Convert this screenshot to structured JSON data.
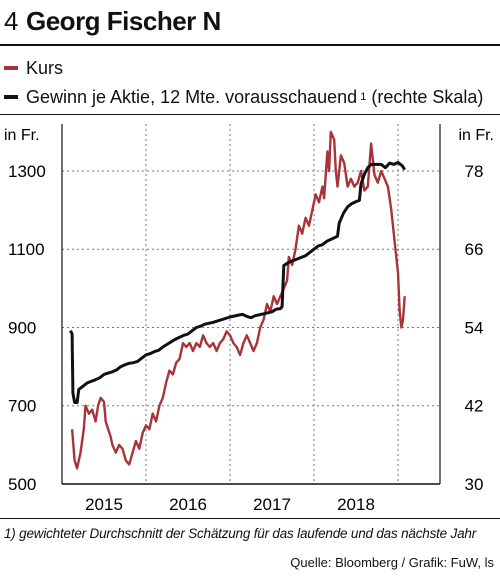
{
  "header": {
    "number": "4",
    "title": "Georg Fischer N"
  },
  "legend": [
    {
      "label": "Kurs",
      "color": "#a8343a"
    },
    {
      "label": "Gewinn je Aktie, 12 Mte. vorausschauend",
      "sup": "1",
      "suffix": "(rechte Skala)",
      "color": "#111111"
    }
  ],
  "footnote": "1) gewichteter Durchschnitt der Schätzung für das laufende und das nächste Jahr",
  "source": "Quelle: Bloomberg / Grafik: FuW, ls",
  "chart_data": {
    "type": "line",
    "left_unit": "in Fr.",
    "right_unit": "in Fr.",
    "x_ticks": [
      "2015",
      "2016",
      "2017",
      "2018"
    ],
    "xlim": [
      2014.5,
      2019.0
    ],
    "left_axis": {
      "ylim": [
        500,
        1420
      ],
      "ticks": [
        500,
        700,
        900,
        1100,
        1300
      ]
    },
    "right_axis": {
      "ylim": [
        30,
        85.2
      ],
      "ticks": [
        30,
        42,
        54,
        66,
        78
      ]
    },
    "series": [
      {
        "name": "Kurs",
        "axis": "left",
        "color": "#a8343a",
        "points": [
          [
            2014.62,
            640
          ],
          [
            2014.65,
            560
          ],
          [
            2014.68,
            540
          ],
          [
            2014.72,
            580
          ],
          [
            2014.76,
            640
          ],
          [
            2014.78,
            700
          ],
          [
            2014.82,
            680
          ],
          [
            2014.86,
            690
          ],
          [
            2014.9,
            660
          ],
          [
            2014.93,
            700
          ],
          [
            2014.96,
            720
          ],
          [
            2015.0,
            710
          ],
          [
            2015.02,
            660
          ],
          [
            2015.05,
            640
          ],
          [
            2015.08,
            620
          ],
          [
            2015.1,
            600
          ],
          [
            2015.14,
            580
          ],
          [
            2015.18,
            600
          ],
          [
            2015.22,
            590
          ],
          [
            2015.26,
            560
          ],
          [
            2015.3,
            550
          ],
          [
            2015.34,
            580
          ],
          [
            2015.38,
            610
          ],
          [
            2015.42,
            590
          ],
          [
            2015.46,
            630
          ],
          [
            2015.5,
            650
          ],
          [
            2015.54,
            640
          ],
          [
            2015.58,
            680
          ],
          [
            2015.62,
            660
          ],
          [
            2015.66,
            700
          ],
          [
            2015.7,
            720
          ],
          [
            2015.74,
            760
          ],
          [
            2015.78,
            790
          ],
          [
            2015.82,
            780
          ],
          [
            2015.86,
            810
          ],
          [
            2015.9,
            820
          ],
          [
            2015.94,
            860
          ],
          [
            2015.98,
            850
          ],
          [
            2016.02,
            860
          ],
          [
            2016.06,
            840
          ],
          [
            2016.1,
            860
          ],
          [
            2016.14,
            850
          ],
          [
            2016.18,
            880
          ],
          [
            2016.22,
            860
          ],
          [
            2016.26,
            850
          ],
          [
            2016.3,
            860
          ],
          [
            2016.34,
            840
          ],
          [
            2016.38,
            860
          ],
          [
            2016.42,
            870
          ],
          [
            2016.46,
            890
          ],
          [
            2016.5,
            880
          ],
          [
            2016.54,
            860
          ],
          [
            2016.58,
            850
          ],
          [
            2016.62,
            830
          ],
          [
            2016.66,
            860
          ],
          [
            2016.7,
            880
          ],
          [
            2016.74,
            860
          ],
          [
            2016.78,
            840
          ],
          [
            2016.82,
            860
          ],
          [
            2016.86,
            900
          ],
          [
            2016.9,
            920
          ],
          [
            2016.94,
            960
          ],
          [
            2016.98,
            940
          ],
          [
            2017.02,
            980
          ],
          [
            2017.06,
            960
          ],
          [
            2017.1,
            980
          ],
          [
            2017.14,
            1000
          ],
          [
            2017.18,
            1020
          ],
          [
            2017.2,
            1080
          ],
          [
            2017.24,
            1060
          ],
          [
            2017.28,
            1100
          ],
          [
            2017.32,
            1160
          ],
          [
            2017.36,
            1140
          ],
          [
            2017.4,
            1180
          ],
          [
            2017.44,
            1160
          ],
          [
            2017.48,
            1200
          ],
          [
            2017.52,
            1240
          ],
          [
            2017.56,
            1220
          ],
          [
            2017.6,
            1260
          ],
          [
            2017.62,
            1230
          ],
          [
            2017.66,
            1350
          ],
          [
            2017.68,
            1300
          ],
          [
            2017.7,
            1400
          ],
          [
            2017.74,
            1380
          ],
          [
            2017.76,
            1300
          ],
          [
            2017.78,
            1260
          ],
          [
            2017.82,
            1340
          ],
          [
            2017.86,
            1320
          ],
          [
            2017.9,
            1260
          ],
          [
            2017.94,
            1280
          ],
          [
            2017.98,
            1260
          ],
          [
            2018.02,
            1270
          ],
          [
            2018.06,
            1300
          ],
          [
            2018.1,
            1250
          ],
          [
            2018.14,
            1260
          ],
          [
            2018.18,
            1370
          ],
          [
            2018.22,
            1290
          ],
          [
            2018.26,
            1270
          ],
          [
            2018.3,
            1300
          ],
          [
            2018.34,
            1280
          ],
          [
            2018.38,
            1260
          ],
          [
            2018.42,
            1200
          ],
          [
            2018.46,
            1120
          ],
          [
            2018.5,
            1040
          ],
          [
            2018.52,
            940
          ],
          [
            2018.54,
            900
          ],
          [
            2018.56,
            920
          ],
          [
            2018.58,
            980
          ]
        ]
      },
      {
        "name": "Gewinn je Aktie, 12 Mte. vorausschauend",
        "axis": "right",
        "color": "#111111",
        "points": [
          [
            2014.6,
            53.5
          ],
          [
            2014.62,
            53
          ],
          [
            2014.63,
            44
          ],
          [
            2014.65,
            42.5
          ],
          [
            2014.68,
            42.5
          ],
          [
            2014.7,
            44.5
          ],
          [
            2014.75,
            45
          ],
          [
            2014.8,
            45.5
          ],
          [
            2014.9,
            46
          ],
          [
            2014.95,
            46.3
          ],
          [
            2015.0,
            46.8
          ],
          [
            2015.05,
            47
          ],
          [
            2015.1,
            47.2
          ],
          [
            2015.15,
            47.5
          ],
          [
            2015.2,
            48
          ],
          [
            2015.25,
            48.3
          ],
          [
            2015.3,
            48.5
          ],
          [
            2015.35,
            48.6
          ],
          [
            2015.4,
            48.8
          ],
          [
            2015.45,
            49.3
          ],
          [
            2015.5,
            49.8
          ],
          [
            2015.55,
            50
          ],
          [
            2015.6,
            50.3
          ],
          [
            2015.65,
            50.5
          ],
          [
            2015.7,
            51
          ],
          [
            2015.75,
            51.4
          ],
          [
            2015.8,
            51.8
          ],
          [
            2015.85,
            52.2
          ],
          [
            2015.9,
            52.5
          ],
          [
            2015.95,
            52.8
          ],
          [
            2016.0,
            53
          ],
          [
            2016.05,
            53.5
          ],
          [
            2016.1,
            54
          ],
          [
            2016.15,
            54.2
          ],
          [
            2016.2,
            54.5
          ],
          [
            2016.3,
            54.8
          ],
          [
            2016.4,
            55.2
          ],
          [
            2016.5,
            55.6
          ],
          [
            2016.6,
            55.9
          ],
          [
            2016.65,
            56
          ],
          [
            2016.7,
            55.7
          ],
          [
            2016.75,
            55.5
          ],
          [
            2016.8,
            55.8
          ],
          [
            2016.9,
            56.1
          ],
          [
            2017.0,
            56.4
          ],
          [
            2017.05,
            56.8
          ],
          [
            2017.1,
            56.9
          ],
          [
            2017.12,
            57.2
          ],
          [
            2017.14,
            63.5
          ],
          [
            2017.2,
            64
          ],
          [
            2017.3,
            64.5
          ],
          [
            2017.4,
            65
          ],
          [
            2017.5,
            66
          ],
          [
            2017.55,
            66.5
          ],
          [
            2017.6,
            66.7
          ],
          [
            2017.65,
            67.2
          ],
          [
            2017.7,
            67.5
          ],
          [
            2017.75,
            67.8
          ],
          [
            2017.78,
            68
          ],
          [
            2017.8,
            70
          ],
          [
            2017.85,
            71.5
          ],
          [
            2017.9,
            72.5
          ],
          [
            2017.95,
            73
          ],
          [
            2018.0,
            73.3
          ],
          [
            2018.04,
            73.5
          ],
          [
            2018.06,
            76
          ],
          [
            2018.1,
            77.5
          ],
          [
            2018.14,
            78.5
          ],
          [
            2018.18,
            79
          ],
          [
            2018.25,
            79
          ],
          [
            2018.3,
            79
          ],
          [
            2018.35,
            78.5
          ],
          [
            2018.4,
            79.2
          ],
          [
            2018.45,
            79
          ],
          [
            2018.5,
            79.3
          ],
          [
            2018.55,
            78.8
          ],
          [
            2018.58,
            78.2
          ]
        ]
      }
    ]
  }
}
